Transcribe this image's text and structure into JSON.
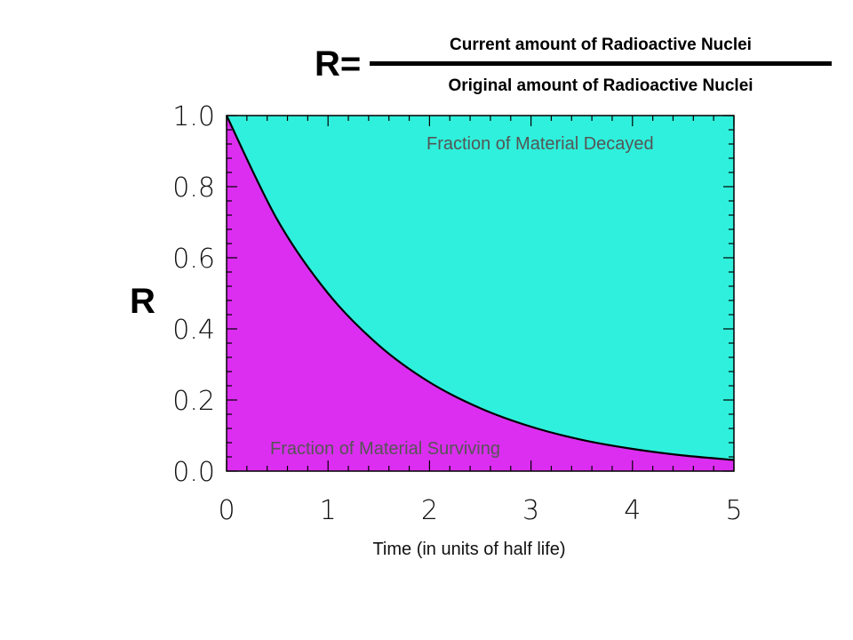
{
  "formula": {
    "lhs": "R=",
    "numerator": "Current amount of Radioactive Nuclei",
    "denominator": "Original amount of Radioactive Nuclei"
  },
  "chart_data": {
    "type": "area",
    "title": "",
    "xlabel": "Time (in units of half life)",
    "ylabel": "R",
    "xlim": [
      0,
      5
    ],
    "ylim": [
      0,
      1.0
    ],
    "x_ticks": [
      "0",
      "1",
      "2",
      "3",
      "4",
      "5"
    ],
    "y_ticks": [
      "0.0",
      "0.2",
      "0.4",
      "0.6",
      "0.8",
      "1.0"
    ],
    "x": [
      0,
      0.5,
      1,
      1.5,
      2,
      2.5,
      3,
      3.5,
      4,
      4.5,
      5
    ],
    "series": [
      {
        "values": [
          1.0,
          0.707,
          0.5,
          0.354,
          0.25,
          0.177,
          0.125,
          0.088,
          0.0625,
          0.044,
          0.03125
        ]
      }
    ],
    "annotations": {
      "upper_region": "Fraction of Material Decayed",
      "lower_region": "Fraction of Material Surviving"
    },
    "colors": {
      "decayed": "#2ff0dc",
      "surviving": "#dc2ef0",
      "curve": "#000000"
    },
    "grid": false
  }
}
